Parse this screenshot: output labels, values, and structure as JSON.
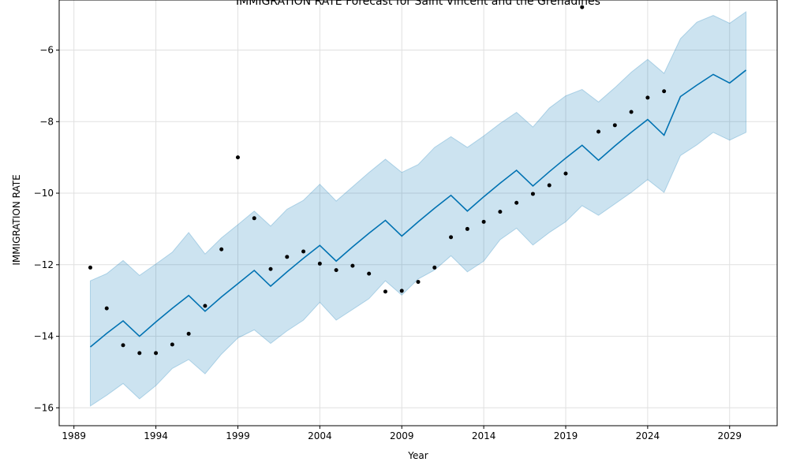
{
  "chart_data": {
    "type": "line",
    "title": "IMMIGRATION RATE Forecast for Saint Vincent and the Grenadines",
    "xlabel": "Year",
    "ylabel": "IMMIGRATION RATE",
    "xlim": [
      1988.1,
      2031.9
    ],
    "ylim": [
      -16.5,
      -4.6
    ],
    "xticks": [
      1989,
      1994,
      1999,
      2004,
      2009,
      2014,
      2019,
      2024,
      2029
    ],
    "yticks": [
      -16,
      -14,
      -12,
      -10,
      -8,
      -6
    ],
    "grid": true,
    "colors": {
      "forecast": "#0072b2",
      "band": "#0072b2",
      "observed": "#000000"
    },
    "observed": {
      "x": [
        1990,
        1991,
        1992,
        1993,
        1994,
        1995,
        1996,
        1997,
        1998,
        1999,
        2000,
        2001,
        2002,
        2003,
        2004,
        2005,
        2006,
        2007,
        2008,
        2009,
        2010,
        2011,
        2012,
        2013,
        2014,
        2015,
        2016,
        2017,
        2018,
        2019,
        2020,
        2021,
        2022,
        2023,
        2024,
        2025
      ],
      "y": [
        -12.08,
        -13.22,
        -14.25,
        -14.47,
        -14.47,
        -14.23,
        -13.93,
        -13.15,
        -11.57,
        -9.0,
        -10.7,
        -12.12,
        -11.78,
        -11.63,
        -11.97,
        -12.15,
        -12.03,
        -12.25,
        -12.75,
        -12.73,
        -12.48,
        -12.08,
        -11.23,
        -11.0,
        -10.8,
        -10.52,
        -10.27,
        -10.02,
        -9.78,
        -9.45,
        -4.8,
        -8.28,
        -8.1,
        -7.73,
        -7.33,
        -7.15
      ]
    },
    "forecast": {
      "x": [
        1990,
        1991,
        1992,
        1993,
        1994,
        1995,
        1996,
        1997,
        1998,
        1999,
        2000,
        2001,
        2002,
        2003,
        2004,
        2005,
        2006,
        2007,
        2008,
        2009,
        2010,
        2011,
        2012,
        2013,
        2014,
        2015,
        2016,
        2017,
        2018,
        2019,
        2020,
        2021,
        2022,
        2023,
        2024,
        2025,
        2026,
        2027,
        2028,
        2029,
        2030
      ],
      "yhat": [
        -14.3,
        -13.92,
        -13.57,
        -14.0,
        -13.6,
        -13.22,
        -12.86,
        -13.3,
        -12.9,
        -12.53,
        -12.16,
        -12.6,
        -12.2,
        -11.82,
        -11.46,
        -11.9,
        -11.5,
        -11.12,
        -10.76,
        -11.2,
        -10.8,
        -10.42,
        -10.06,
        -10.5,
        -10.1,
        -9.72,
        -9.36,
        -9.8,
        -9.4,
        -9.02,
        -8.66,
        -9.08,
        -8.68,
        -8.3,
        -7.94,
        -8.38,
        -7.3,
        -6.98,
        -6.68,
        -6.92,
        -6.56
      ],
      "lower": [
        -15.95,
        -15.65,
        -15.32,
        -15.75,
        -15.38,
        -14.9,
        -14.65,
        -15.05,
        -14.5,
        -14.05,
        -13.82,
        -14.2,
        -13.85,
        -13.55,
        -13.05,
        -13.55,
        -13.25,
        -12.95,
        -12.45,
        -12.85,
        -12.4,
        -12.15,
        -11.75,
        -12.2,
        -11.9,
        -11.3,
        -10.98,
        -11.45,
        -11.1,
        -10.8,
        -10.35,
        -10.62,
        -10.3,
        -9.98,
        -9.62,
        -9.98,
        -8.95,
        -8.65,
        -8.3,
        -8.52,
        -8.3
      ],
      "upper": [
        -12.45,
        -12.25,
        -11.88,
        -12.3,
        -11.98,
        -11.65,
        -11.1,
        -11.7,
        -11.25,
        -10.88,
        -10.5,
        -10.92,
        -10.45,
        -10.2,
        -9.75,
        -10.22,
        -9.82,
        -9.42,
        -9.05,
        -9.42,
        -9.2,
        -8.72,
        -8.42,
        -8.72,
        -8.4,
        -8.05,
        -7.74,
        -8.15,
        -7.62,
        -7.28,
        -7.1,
        -7.45,
        -7.05,
        -6.62,
        -6.26,
        -6.65,
        -5.68,
        -5.22,
        -5.03,
        -5.25,
        -4.93
      ]
    }
  }
}
